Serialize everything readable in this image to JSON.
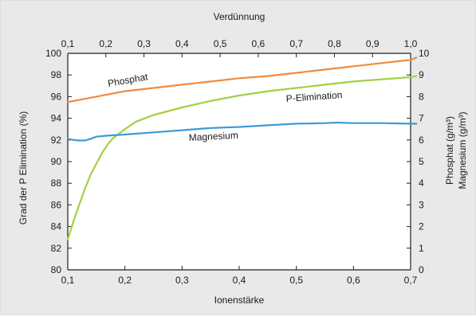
{
  "chart_data": {
    "type": "line",
    "x_top_label": "Verdünnung",
    "x_bottom_label": "Ionenstärke",
    "y_left_label": "Grad der P Elimination (%)",
    "y_right_label_1": "Phosphat (g/m³)",
    "y_right_label_2": "Magnesium (g/m³)",
    "x_bottom_range": [
      0.1,
      0.7
    ],
    "x_top_range": [
      0.1,
      1.0
    ],
    "y_left_range": [
      80,
      100
    ],
    "y_right_range": [
      0,
      10
    ],
    "x_bottom_ticks": [
      "0,1",
      "0,2",
      "0,3",
      "0,4",
      "0,5",
      "0,6",
      "0,7"
    ],
    "x_bottom_tick_values": [
      0.1,
      0.2,
      0.3,
      0.4,
      0.5,
      0.6,
      0.7
    ],
    "x_top_ticks": [
      "0,1",
      "0,2",
      "0,3",
      "0,4",
      "0,5",
      "0,6",
      "0,7",
      "0,8",
      "0,9",
      "1,0"
    ],
    "x_top_tick_values": [
      0.1,
      0.2,
      0.3,
      0.4,
      0.5,
      0.6,
      0.7,
      0.8,
      0.9,
      1.0
    ],
    "y_left_ticks": [
      "80",
      "82",
      "84",
      "86",
      "88",
      "90",
      "92",
      "94",
      "96",
      "98",
      "100"
    ],
    "y_left_tick_values": [
      80,
      82,
      84,
      86,
      88,
      90,
      92,
      94,
      96,
      98,
      100
    ],
    "y_right_ticks": [
      "0",
      "1",
      "2",
      "3",
      "4",
      "5",
      "6",
      "7",
      "8",
      "9",
      "10"
    ],
    "y_right_tick_values": [
      0,
      1,
      2,
      3,
      4,
      5,
      6,
      7,
      8,
      9,
      10
    ],
    "grid": false,
    "series": [
      {
        "name": "Phosphat",
        "color": "#f28a3c",
        "x": [
          0.1,
          0.15,
          0.2,
          0.25,
          0.3,
          0.35,
          0.4,
          0.45,
          0.5,
          0.55,
          0.6,
          0.65,
          0.7,
          0.71
        ],
        "y": [
          95.5,
          96.0,
          96.5,
          96.8,
          97.1,
          97.4,
          97.7,
          97.9,
          98.2,
          98.5,
          98.8,
          99.1,
          99.4,
          99.6
        ]
      },
      {
        "name": "P-Elimination",
        "color": "#a5cf45",
        "x": [
          0.1,
          0.11,
          0.12,
          0.13,
          0.14,
          0.15,
          0.16,
          0.17,
          0.18,
          0.2,
          0.22,
          0.25,
          0.3,
          0.35,
          0.4,
          0.45,
          0.5,
          0.55,
          0.6,
          0.65,
          0.7,
          0.71
        ],
        "y": [
          82.8,
          84.5,
          86.0,
          87.5,
          88.8,
          89.8,
          90.8,
          91.6,
          92.2,
          93.0,
          93.7,
          94.3,
          95.0,
          95.6,
          96.1,
          96.5,
          96.8,
          97.1,
          97.4,
          97.6,
          97.8,
          97.9
        ]
      },
      {
        "name": "Magnesium",
        "color": "#3d9ad6",
        "x": [
          0.1,
          0.11,
          0.12,
          0.13,
          0.14,
          0.15,
          0.17,
          0.2,
          0.25,
          0.3,
          0.35,
          0.4,
          0.45,
          0.5,
          0.55,
          0.57,
          0.6,
          0.65,
          0.7,
          0.71
        ],
        "y": [
          92.1,
          92.0,
          91.95,
          91.95,
          92.1,
          92.3,
          92.4,
          92.5,
          92.7,
          92.9,
          93.1,
          93.2,
          93.35,
          93.5,
          93.55,
          93.6,
          93.55,
          93.55,
          93.5,
          93.5
        ]
      }
    ],
    "label_names": [
      "Phosphat",
      "P-Elimination",
      "Magnesium"
    ]
  }
}
